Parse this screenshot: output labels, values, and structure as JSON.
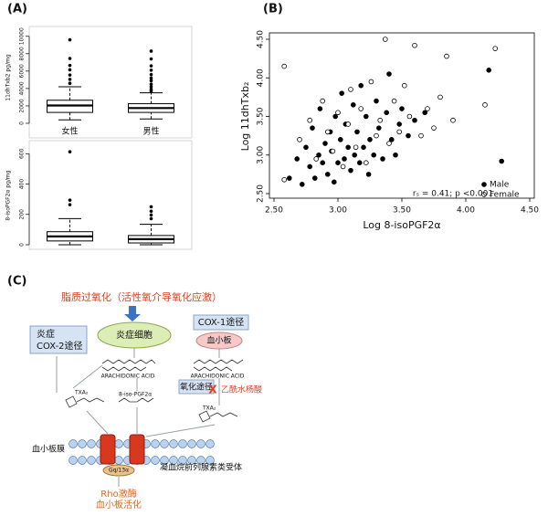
{
  "panel_labels": [
    "(A)",
    "(B)",
    "(C)"
  ],
  "chart_data": [
    {
      "type": "box",
      "y_label": "11dhTxb2 pg/mg",
      "categories": [
        "女性",
        "男性"
      ],
      "ylim": [
        0,
        10500
      ],
      "yticks": [
        0,
        2000,
        4000,
        6000,
        8000,
        10000
      ],
      "color": "#000000",
      "boxes": [
        {
          "whisker_low": 400,
          "q1": 1250,
          "median": 2050,
          "q3": 2650,
          "whisker_high": 4200,
          "outliers": [
            4600,
            5050,
            5550,
            6150,
            6650,
            7450,
            9600
          ]
        },
        {
          "whisker_low": 500,
          "q1": 1250,
          "median": 1750,
          "q3": 2250,
          "whisker_high": 3500,
          "outliers": [
            3700,
            3900,
            4200,
            4500,
            4900,
            5200,
            5600,
            6100,
            6600,
            7400,
            8300
          ]
        }
      ]
    },
    {
      "type": "box",
      "y_label": "8-isoPGF2α pg/mg",
      "ylim": [
        0,
        650
      ],
      "yticks": [
        0,
        200,
        400,
        600
      ],
      "color": "#000000",
      "boxes": [
        {
          "whisker_low": 0,
          "q1": 25,
          "median": 55,
          "q3": 86,
          "whisker_high": 172,
          "outliers": [
            264,
            294,
            613
          ]
        },
        {
          "whisker_low": 0,
          "q1": 12,
          "median": 37,
          "q3": 61,
          "whisker_high": 135,
          "outliers": [
            172,
            196,
            221,
            250
          ]
        }
      ]
    },
    {
      "type": "scatter",
      "x_label": "Log 8-isoPGF2α",
      "y_label": "Log 11dhTxb₂",
      "annotation": "rₛ = 0.41; p <0.001",
      "legend_position": "lower right",
      "grid": false,
      "xlim": [
        2.5,
        4.5
      ],
      "ylim": [
        2.5,
        4.5
      ],
      "xticks": [
        {
          "value": 2.5,
          "label": "2.50"
        },
        {
          "value": 3,
          "label": "3.00"
        },
        {
          "value": 3.5,
          "label": "3.50"
        },
        {
          "value": 4,
          "label": "4.00"
        },
        {
          "value": 4.5,
          "label": "4.50"
        }
      ],
      "yticks": [
        {
          "value": 2.5,
          "label": "2.50"
        },
        {
          "value": 3,
          "label": "3.00"
        },
        {
          "value": 3.5,
          "label": "3.50"
        },
        {
          "value": 4,
          "label": "4.00"
        },
        {
          "value": 4.5,
          "label": "4.50"
        }
      ],
      "series": [
        {
          "name": "Male",
          "marker": "filled",
          "color": "#000000",
          "x": [
            2.62,
            2.68,
            2.72,
            2.75,
            2.78,
            2.8,
            2.82,
            2.85,
            2.86,
            2.88,
            2.9,
            2.92,
            2.94,
            2.95,
            2.97,
            2.98,
            3.0,
            3.02,
            3.03,
            3.05,
            3.06,
            3.08,
            3.1,
            3.12,
            3.13,
            3.15,
            3.17,
            3.18,
            3.2,
            3.22,
            3.24,
            3.25,
            3.28,
            3.3,
            3.32,
            3.35,
            3.38,
            3.4,
            3.42,
            3.45,
            3.48,
            3.5,
            3.55,
            3.6,
            3.68,
            4.18,
            4.28
          ],
          "y": [
            2.7,
            2.95,
            2.62,
            3.1,
            2.85,
            3.35,
            2.7,
            3.0,
            3.6,
            2.9,
            3.15,
            2.75,
            3.3,
            3.05,
            2.65,
            3.5,
            2.9,
            3.2,
            3.8,
            2.95,
            3.4,
            3.1,
            2.8,
            3.65,
            3.0,
            3.3,
            2.9,
            3.9,
            3.1,
            3.5,
            2.75,
            3.2,
            3.0,
            3.7,
            3.35,
            2.95,
            3.55,
            4.05,
            3.2,
            3.0,
            3.4,
            3.6,
            3.25,
            3.45,
            3.55,
            4.1,
            2.92
          ]
        },
        {
          "name": "Female",
          "marker": "open",
          "color": "#000000",
          "x": [
            2.58,
            2.58,
            2.7,
            2.78,
            2.83,
            2.88,
            2.92,
            2.96,
            3.0,
            3.04,
            3.08,
            3.1,
            3.14,
            3.18,
            3.22,
            3.26,
            3.3,
            3.33,
            3.37,
            3.4,
            3.44,
            3.48,
            3.52,
            3.56,
            3.6,
            3.65,
            3.7,
            3.75,
            3.8,
            3.85,
            3.9,
            4.15,
            4.23
          ],
          "y": [
            4.15,
            2.68,
            3.2,
            3.45,
            2.95,
            3.7,
            3.3,
            3.05,
            3.55,
            2.85,
            3.4,
            3.85,
            3.1,
            3.6,
            2.9,
            3.95,
            3.25,
            3.45,
            4.5,
            3.15,
            3.7,
            3.3,
            3.9,
            3.5,
            4.42,
            3.25,
            3.6,
            3.35,
            3.75,
            4.28,
            3.45,
            3.65,
            4.38
          ]
        }
      ]
    }
  ],
  "diagram": {
    "title": "脂质过氧化（活性氧介导氧化应激）",
    "inflammatory_cell": "炎症细胞",
    "cox2_box": [
      "炎症",
      "COX-2途径"
    ],
    "cox1_box": "COX-1途径",
    "platelet": "血小板",
    "arachidonic_acid": [
      "ARACHIDONIC ACID",
      "ARACHIDONIC ACID"
    ],
    "oxidation_box": "氧化途径",
    "isoprostane": "8-iso-PGF2α",
    "txa2": [
      "TXA₂",
      "TXA₂"
    ],
    "inhibition_mark": "X",
    "aspirin": "乙酰水杨酸",
    "membrane": "血小板膜",
    "g_protein": "Gq/13α",
    "receptor": "凝血烷前列腺素类受体",
    "outcome": [
      "Rho激酶",
      "血小板活化"
    ]
  }
}
